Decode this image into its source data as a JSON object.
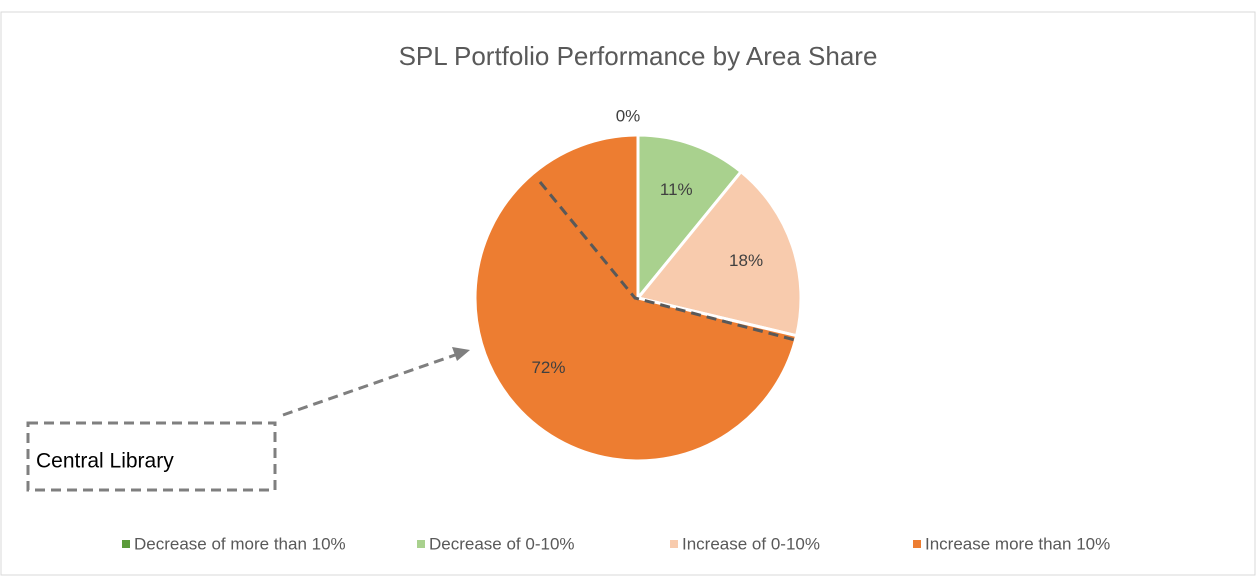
{
  "chart_data": {
    "type": "pie",
    "title": "SPL Portfolio Performance by Area Share",
    "categories": [
      "Decrease of more than 10%",
      "Decrease of 0-10%",
      "Increase of 0-10%",
      "Increase more than 10%"
    ],
    "values": [
      0,
      11,
      18,
      72
    ],
    "value_labels": [
      "0%",
      "11%",
      "18%",
      "72%"
    ],
    "colors": [
      "#5b9b3a",
      "#a9d18e",
      "#f8cbad",
      "#ed7d31"
    ],
    "legend": "bottom",
    "annotation": "Central Library"
  }
}
